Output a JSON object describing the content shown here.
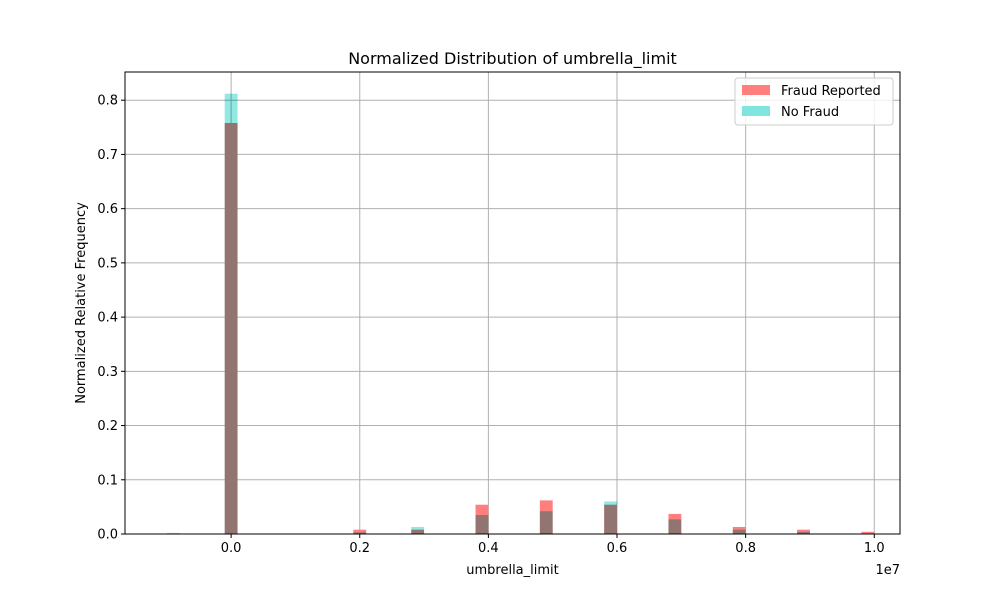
{
  "chart_data": {
    "type": "bar",
    "title": "Normalized Distribution of umbrella_limit",
    "xlabel": "umbrella_limit",
    "ylabel": "Normalized Relative Frequency",
    "x_offset_label": "1e7",
    "xlim": [
      -1650000,
      10400000
    ],
    "ylim": [
      0,
      0.852
    ],
    "bin_width": 200000,
    "xticks": [
      0,
      2000000,
      4000000,
      6000000,
      8000000,
      10000000
    ],
    "xtick_labels": [
      "0.0",
      "0.2",
      "0.4",
      "0.6",
      "0.8",
      "1.0"
    ],
    "yticks": [
      0,
      0.1,
      0.2,
      0.3,
      0.4,
      0.5,
      0.6,
      0.7,
      0.8
    ],
    "ytick_labels": [
      "0.0",
      "0.1",
      "0.2",
      "0.3",
      "0.4",
      "0.5",
      "0.6",
      "0.7",
      "0.8"
    ],
    "grid": true,
    "legend_position": "top-right",
    "series": [
      {
        "name": "Fraud Reported",
        "color": "#ff7f7f",
        "bins": [
          {
            "x": -1000000,
            "value": 0.0
          },
          {
            "x": -100000,
            "value": 0.758
          },
          {
            "x": 1900000,
            "value": 0.008
          },
          {
            "x": 2800000,
            "value": 0.008
          },
          {
            "x": 3800000,
            "value": 0.054
          },
          {
            "x": 4800000,
            "value": 0.062
          },
          {
            "x": 5800000,
            "value": 0.054
          },
          {
            "x": 6800000,
            "value": 0.037
          },
          {
            "x": 7800000,
            "value": 0.013
          },
          {
            "x": 8800000,
            "value": 0.008
          },
          {
            "x": 9800000,
            "value": 0.004
          }
        ]
      },
      {
        "name": "No Fraud",
        "color": "#7fe5de",
        "bins": [
          {
            "x": -1000000,
            "value": 0.002
          },
          {
            "x": -100000,
            "value": 0.812
          },
          {
            "x": 1900000,
            "value": 0.003
          },
          {
            "x": 2800000,
            "value": 0.013
          },
          {
            "x": 3800000,
            "value": 0.035
          },
          {
            "x": 4800000,
            "value": 0.042
          },
          {
            "x": 5800000,
            "value": 0.06
          },
          {
            "x": 6800000,
            "value": 0.027
          },
          {
            "x": 7800000,
            "value": 0.008
          },
          {
            "x": 8800000,
            "value": 0.004
          },
          {
            "x": 9800000,
            "value": 0.0
          }
        ]
      }
    ]
  }
}
